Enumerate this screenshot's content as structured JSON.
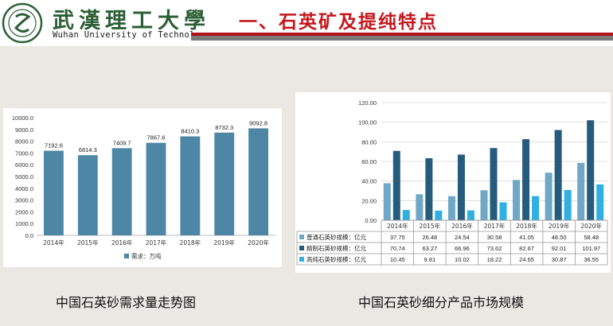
{
  "header": {
    "university_cn": "武漢理工大學",
    "university_en": "Wuhan University of Technology",
    "title": "一、石英矿及提纯特点"
  },
  "colors": {
    "title_red": "#c5161c",
    "bar_left": "#4e87a6",
    "series": [
      "#6fa7c6",
      "#255b7c",
      "#2fb0e0"
    ]
  },
  "left_caption": "中国石英砂需求量走势图",
  "right_caption": "中国石英砂细分产品市场规模",
  "chart_data": [
    {
      "type": "bar",
      "categories": [
        "2014年",
        "2015年",
        "2016年",
        "2017年",
        "2018年",
        "2019年",
        "2020年"
      ],
      "series": [
        {
          "name": "需求：万吨",
          "values": [
            7192.6,
            6814.3,
            7409.7,
            7867.6,
            8410.3,
            8732.3,
            9092.8
          ]
        }
      ],
      "data_labels": [
        "7192.6",
        "6814.3",
        "7409.7",
        "7867.6",
        "8410.3",
        "8732.3",
        "9092.8"
      ],
      "yticks": [
        "0.0",
        "1000.0",
        "2000.0",
        "3000.0",
        "4000.0",
        "5000.0",
        "6000.0",
        "7000.0",
        "8000.0",
        "9000.0",
        "10000.0"
      ],
      "ylim": [
        0,
        10000
      ],
      "grid": false,
      "legend": "bottom"
    },
    {
      "type": "bar",
      "categories": [
        "2014年",
        "2015年",
        "2016年",
        "2017年",
        "2018年",
        "2019年",
        "2020年"
      ],
      "series": [
        {
          "name": "普通石英砂规模：亿元",
          "values": [
            37.75,
            26.48,
            24.54,
            30.58,
            41.05,
            48.5,
            58.48
          ],
          "labels": [
            "37.75",
            "26.48",
            "24.54",
            "30.58",
            "41.05",
            "48.50",
            "58.48"
          ]
        },
        {
          "name": "精制石英砂规模：亿元",
          "values": [
            70.74,
            63.27,
            66.96,
            73.62,
            82.67,
            92.01,
            101.97
          ],
          "labels": [
            "70.74",
            "63.27",
            "66.96",
            "73.62",
            "82.67",
            "92.01",
            "101.97"
          ]
        },
        {
          "name": "高纯石英砂规模：亿元",
          "values": [
            10.45,
            9.81,
            10.02,
            18.22,
            24.65,
            30.87,
            36.55
          ],
          "labels": [
            "10.45",
            "9.81",
            "10.02",
            "18.22",
            "24.65",
            "30.87",
            "36.55"
          ]
        }
      ],
      "yticks": [
        "0.00",
        "20.00",
        "40.00",
        "60.00",
        "80.00",
        "100.00",
        "120.00"
      ],
      "ylim": [
        0,
        120
      ],
      "grid": true,
      "legend": "bottom table"
    }
  ]
}
